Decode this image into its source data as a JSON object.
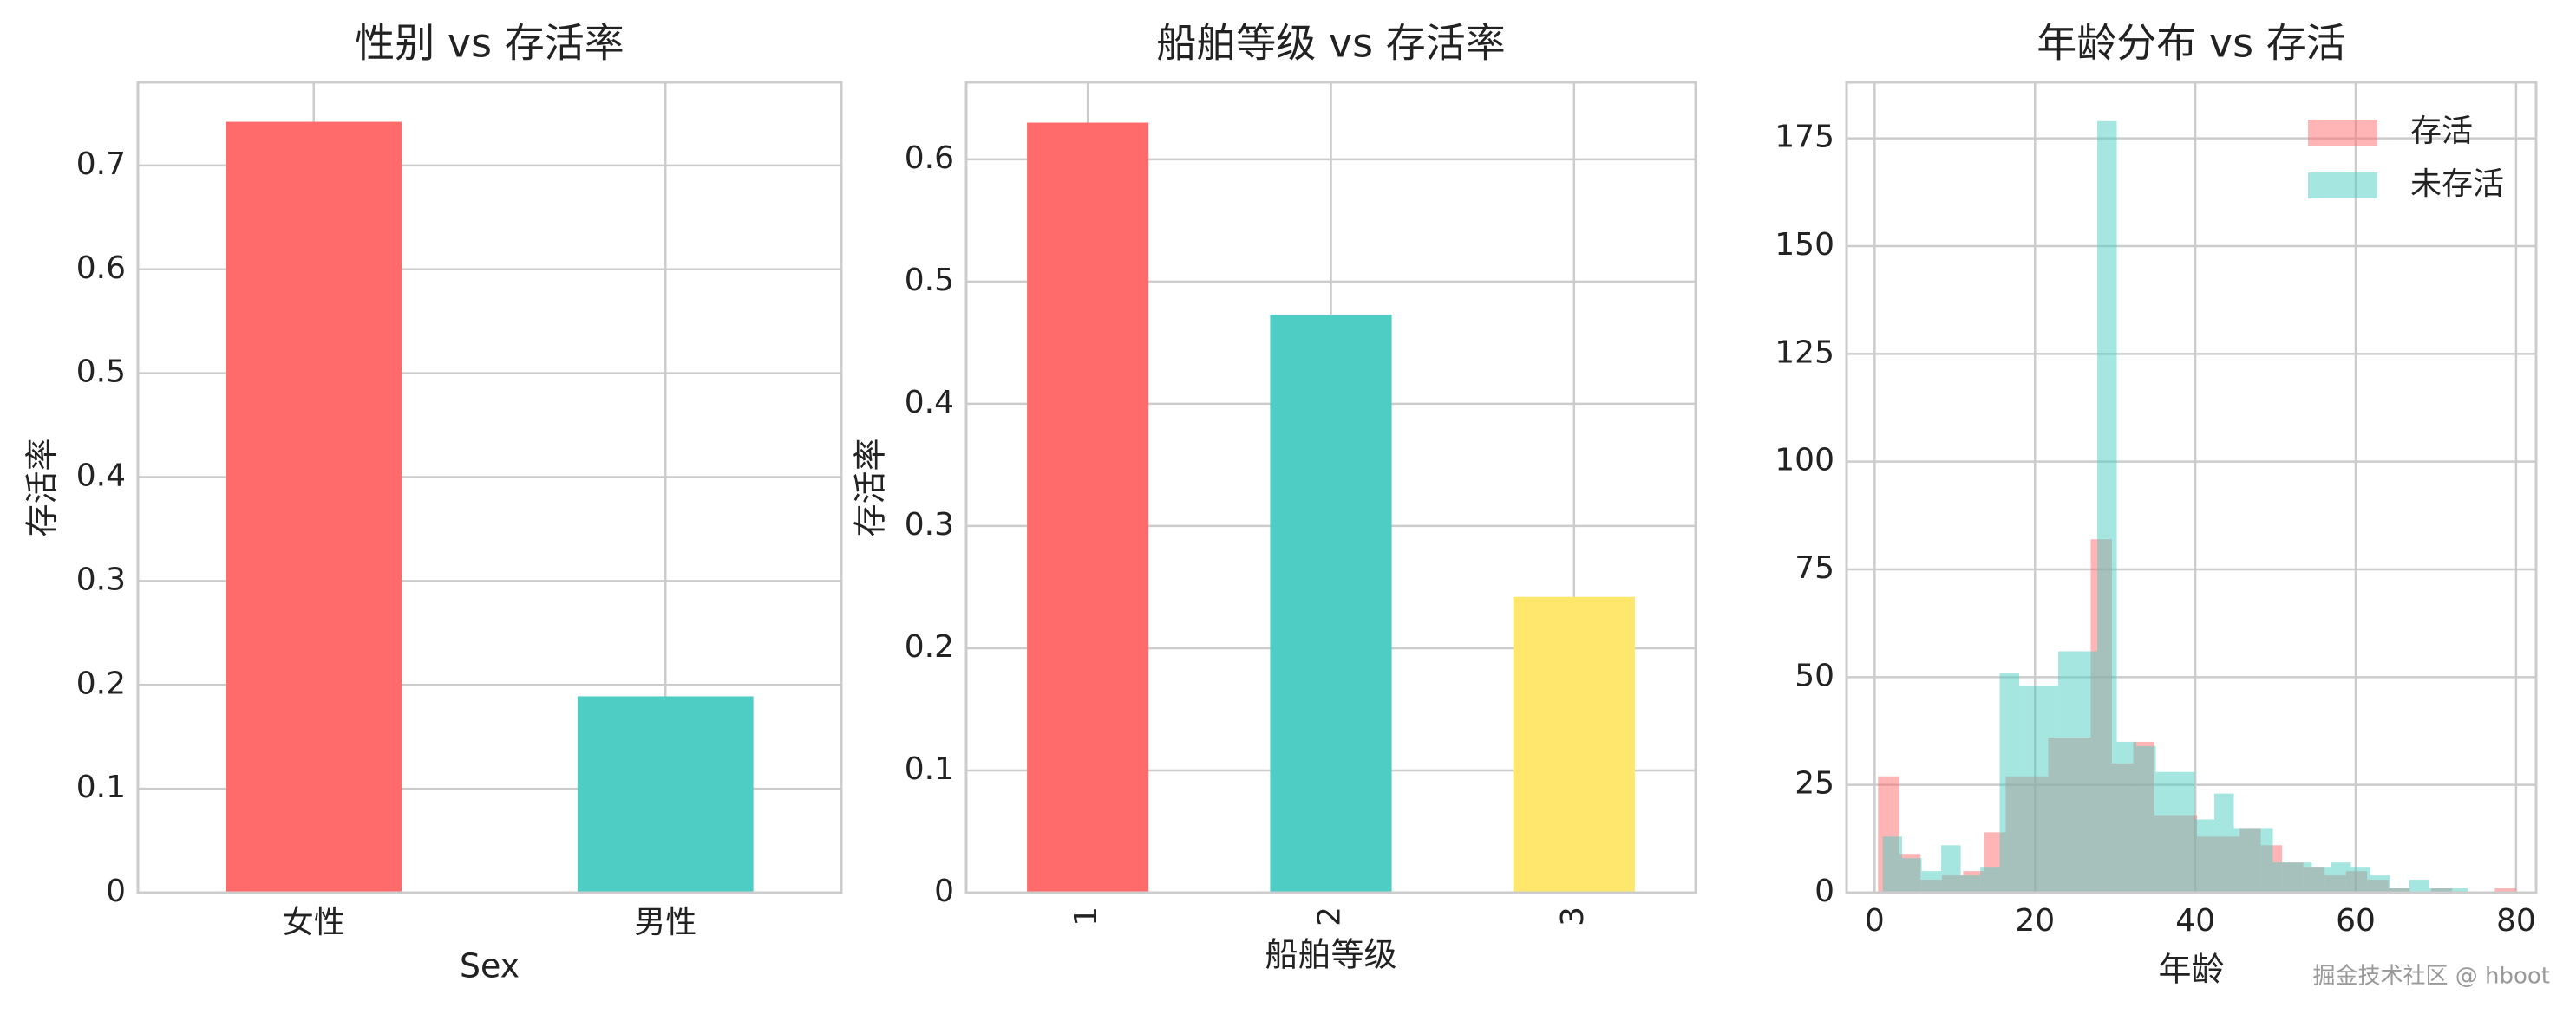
{
  "chart_data": [
    {
      "type": "bar",
      "title": "性别 vs 存活率",
      "xlabel": "Sex",
      "ylabel": "存活率",
      "categories": [
        "女性",
        "男性"
      ],
      "values": [
        0.742,
        0.189
      ],
      "colors": [
        "#ff6b6b",
        "#4ecdc4"
      ],
      "ylim": [
        0,
        0.78
      ],
      "yticks": [
        0.0,
        0.1,
        0.2,
        0.3,
        0.4,
        0.5,
        0.6,
        0.7
      ],
      "grid": true,
      "rotate_xticks": false
    },
    {
      "type": "bar",
      "title": "船舶等级 vs 存活率",
      "xlabel": "船舶等级",
      "ylabel": "存活率",
      "categories": [
        "1",
        "2",
        "3"
      ],
      "values": [
        0.63,
        0.473,
        0.242
      ],
      "colors": [
        "#ff6b6b",
        "#4ecdc4",
        "#ffe66d"
      ],
      "ylim": [
        0,
        0.663
      ],
      "yticks": [
        0.0,
        0.1,
        0.2,
        0.3,
        0.4,
        0.5,
        0.6
      ],
      "grid": true,
      "rotate_xticks": true
    },
    {
      "type": "histogram",
      "title": "年龄分布 vs 存活",
      "xlabel": "年龄",
      "legend": "upper right",
      "grid": true,
      "xlim": [
        -3.5,
        82.5
      ],
      "xticks": [
        0,
        20,
        40,
        60,
        80
      ],
      "ylim": [
        0,
        188
      ],
      "yticks": [
        0,
        25,
        50,
        75,
        100,
        125,
        150,
        175
      ],
      "series": [
        {
          "name": "存活",
          "color": "#ff6b6b",
          "opacity": 0.5,
          "bins": [
            0.42,
            3.07,
            5.73,
            8.38,
            11.03,
            13.68,
            16.34,
            18.99,
            21.64,
            24.29,
            26.95,
            29.6,
            32.25,
            34.9,
            37.56,
            40.21,
            42.86,
            45.52,
            48.17,
            50.82,
            53.47,
            56.13,
            58.78,
            61.43,
            64.08,
            66.74,
            69.39,
            72.04,
            74.69,
            77.35,
            80.0
          ],
          "values": [
            27,
            9,
            3,
            4,
            5,
            14,
            27,
            27,
            36,
            36,
            82,
            30,
            35,
            18,
            18,
            13,
            13,
            15,
            11,
            7,
            6,
            4,
            5,
            3,
            1,
            0,
            1,
            0,
            0,
            1
          ]
        },
        {
          "name": "未存活",
          "color": "#4ecdc4",
          "opacity": 0.5,
          "bins": [
            1,
            3.43,
            5.87,
            8.3,
            10.73,
            13.17,
            15.6,
            18.03,
            20.47,
            22.9,
            25.33,
            27.77,
            30.2,
            32.63,
            35.07,
            37.5,
            39.93,
            42.37,
            44.8,
            47.23,
            49.67,
            52.1,
            54.53,
            56.97,
            59.4,
            61.83,
            64.27,
            66.7,
            69.13,
            71.57,
            74
          ],
          "values": [
            13,
            8,
            5,
            11,
            4,
            6,
            51,
            48,
            48,
            56,
            56,
            179,
            35,
            34,
            28,
            28,
            17,
            23,
            15,
            15,
            7,
            7,
            6,
            7,
            6,
            4,
            1,
            3,
            1,
            1
          ]
        }
      ]
    }
  ],
  "watermark": "掘金技术社区 @ hboot"
}
